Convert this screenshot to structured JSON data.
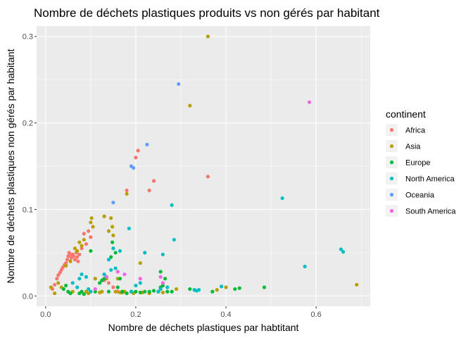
{
  "chart_data": {
    "type": "scatter",
    "title": "Nombre de déchets plastiques produits vs non gérés par habitant",
    "xlabel": "Nombre de déchets plastiques par habtitant",
    "ylabel": "Nombre de déchets plastiques non gérés par habitant",
    "xlim": [
      -0.02,
      0.72
    ],
    "ylim": [
      -0.012,
      0.312
    ],
    "x_ticks": [
      0.0,
      0.2,
      0.4,
      0.6
    ],
    "x_tick_labels": [
      "0.0",
      "0.2",
      "0.4",
      "0.6"
    ],
    "y_ticks": [
      0.0,
      0.1,
      0.2,
      0.3
    ],
    "y_tick_labels": [
      "0.0",
      "0.1",
      "0.2",
      "0.3"
    ],
    "grid": true,
    "background": "#EBEBEB",
    "legend": {
      "title": "continent",
      "placement": "right"
    },
    "series": [
      {
        "name": "Africa",
        "color": "#F8766D",
        "points": [
          [
            0.015,
            0.008
          ],
          [
            0.02,
            0.013
          ],
          [
            0.025,
            0.02
          ],
          [
            0.028,
            0.024
          ],
          [
            0.032,
            0.027
          ],
          [
            0.035,
            0.03
          ],
          [
            0.038,
            0.033
          ],
          [
            0.042,
            0.036
          ],
          [
            0.045,
            0.038
          ],
          [
            0.048,
            0.042
          ],
          [
            0.05,
            0.046
          ],
          [
            0.052,
            0.05
          ],
          [
            0.055,
            0.048
          ],
          [
            0.057,
            0.044
          ],
          [
            0.06,
            0.048
          ],
          [
            0.062,
            0.046
          ],
          [
            0.065,
            0.042
          ],
          [
            0.068,
            0.05
          ],
          [
            0.07,
            0.045
          ],
          [
            0.072,
            0.04
          ],
          [
            0.075,
            0.048
          ],
          [
            0.08,
            0.055
          ],
          [
            0.085,
            0.072
          ],
          [
            0.09,
            0.06
          ],
          [
            0.095,
            0.075
          ],
          [
            0.1,
            0.068
          ],
          [
            0.11,
            0.02
          ],
          [
            0.13,
            0.018
          ],
          [
            0.14,
            0.015
          ],
          [
            0.15,
            0.01
          ],
          [
            0.16,
            0.005
          ],
          [
            0.18,
            0.122
          ],
          [
            0.19,
            0.005
          ],
          [
            0.2,
            0.16
          ],
          [
            0.205,
            0.168
          ],
          [
            0.23,
            0.122
          ],
          [
            0.24,
            0.133
          ],
          [
            0.36,
            0.138
          ]
        ]
      },
      {
        "name": "Asia",
        "color": "#B79F00",
        "points": [
          [
            0.012,
            0.01
          ],
          [
            0.02,
            0.003
          ],
          [
            0.028,
            0.015
          ],
          [
            0.035,
            0.01
          ],
          [
            0.045,
            0.035
          ],
          [
            0.055,
            0.04
          ],
          [
            0.06,
            0.005
          ],
          [
            0.065,
            0.055
          ],
          [
            0.07,
            0.052
          ],
          [
            0.075,
            0.062
          ],
          [
            0.08,
            0.058
          ],
          [
            0.085,
            0.065
          ],
          [
            0.09,
            0.005
          ],
          [
            0.095,
            0.003
          ],
          [
            0.1,
            0.085
          ],
          [
            0.102,
            0.09
          ],
          [
            0.105,
            0.08
          ],
          [
            0.11,
            0.02
          ],
          [
            0.12,
            0.004
          ],
          [
            0.125,
            0.005
          ],
          [
            0.13,
            0.092
          ],
          [
            0.135,
            0.02
          ],
          [
            0.14,
            0.075
          ],
          [
            0.145,
            0.09
          ],
          [
            0.148,
            0.08
          ],
          [
            0.15,
            0.07
          ],
          [
            0.155,
            0.005
          ],
          [
            0.16,
            0.02
          ],
          [
            0.165,
            0.004
          ],
          [
            0.17,
            0.004
          ],
          [
            0.175,
            0.005
          ],
          [
            0.18,
            0.118
          ],
          [
            0.19,
            0.005
          ],
          [
            0.195,
            0.003
          ],
          [
            0.21,
            0.038
          ],
          [
            0.215,
            0.004
          ],
          [
            0.23,
            0.003
          ],
          [
            0.25,
            0.005
          ],
          [
            0.26,
            0.004
          ],
          [
            0.29,
            0.008
          ],
          [
            0.32,
            0.22
          ],
          [
            0.36,
            0.3
          ],
          [
            0.38,
            0.007
          ],
          [
            0.4,
            0.01
          ],
          [
            0.69,
            0.013
          ]
        ]
      },
      {
        "name": "Europe",
        "color": "#00BA38",
        "points": [
          [
            0.04,
            0.008
          ],
          [
            0.045,
            0.012
          ],
          [
            0.05,
            0.005
          ],
          [
            0.055,
            0.003
          ],
          [
            0.075,
            0.003
          ],
          [
            0.08,
            0.005
          ],
          [
            0.085,
            0.002
          ],
          [
            0.1,
            0.052
          ],
          [
            0.11,
            0.005
          ],
          [
            0.12,
            0.015
          ],
          [
            0.125,
            0.018
          ],
          [
            0.13,
            0.02
          ],
          [
            0.135,
            0.022
          ],
          [
            0.14,
            0.005
          ],
          [
            0.145,
            0.045
          ],
          [
            0.148,
            0.062
          ],
          [
            0.15,
            0.055
          ],
          [
            0.155,
            0.05
          ],
          [
            0.16,
            0.01
          ],
          [
            0.165,
            0.02
          ],
          [
            0.17,
            0.005
          ],
          [
            0.18,
            0.003
          ],
          [
            0.19,
            0.005
          ],
          [
            0.2,
            0.005
          ],
          [
            0.21,
            0.004
          ],
          [
            0.22,
            0.005
          ],
          [
            0.23,
            0.005
          ],
          [
            0.24,
            0.006
          ],
          [
            0.25,
            0.005
          ],
          [
            0.255,
            0.01
          ],
          [
            0.26,
            0.012
          ],
          [
            0.265,
            0.02
          ],
          [
            0.27,
            0.005
          ],
          [
            0.28,
            0.005
          ],
          [
            0.32,
            0.008
          ],
          [
            0.33,
            0.007
          ],
          [
            0.37,
            0.005
          ],
          [
            0.42,
            0.008
          ],
          [
            0.43,
            0.009
          ],
          [
            0.485,
            0.01
          ],
          [
            0.255,
            0.028
          ]
        ]
      },
      {
        "name": "North America",
        "color": "#00BFC4",
        "points": [
          [
            0.06,
            0.015
          ],
          [
            0.07,
            0.01
          ],
          [
            0.075,
            0.02
          ],
          [
            0.08,
            0.025
          ],
          [
            0.09,
            0.022
          ],
          [
            0.095,
            0.008
          ],
          [
            0.1,
            0.005
          ],
          [
            0.13,
            0.025
          ],
          [
            0.14,
            0.042
          ],
          [
            0.145,
            0.03
          ],
          [
            0.15,
            0.055
          ],
          [
            0.155,
            0.032
          ],
          [
            0.165,
            0.052
          ],
          [
            0.185,
            0.078
          ],
          [
            0.19,
            0.005
          ],
          [
            0.2,
            0.012
          ],
          [
            0.21,
            0.015
          ],
          [
            0.22,
            0.05
          ],
          [
            0.25,
            0.005
          ],
          [
            0.255,
            0.008
          ],
          [
            0.26,
            0.048
          ],
          [
            0.27,
            0.01
          ],
          [
            0.28,
            0.105
          ],
          [
            0.285,
            0.065
          ],
          [
            0.33,
            0.007
          ],
          [
            0.335,
            0.006
          ],
          [
            0.34,
            0.007
          ],
          [
            0.39,
            0.011
          ],
          [
            0.525,
            0.113
          ],
          [
            0.575,
            0.034
          ],
          [
            0.655,
            0.054
          ],
          [
            0.66,
            0.051
          ]
        ]
      },
      {
        "name": "Oceania",
        "color": "#619CFF",
        "points": [
          [
            0.15,
            0.108
          ],
          [
            0.19,
            0.15
          ],
          [
            0.195,
            0.148
          ],
          [
            0.225,
            0.175
          ],
          [
            0.295,
            0.245
          ]
        ]
      },
      {
        "name": "South America",
        "color": "#F564E3",
        "points": [
          [
            0.11,
            0.008
          ],
          [
            0.135,
            0.022
          ],
          [
            0.16,
            0.028
          ],
          [
            0.175,
            0.025
          ],
          [
            0.21,
            0.02
          ],
          [
            0.255,
            0.022
          ],
          [
            0.26,
            0.015
          ],
          [
            0.585,
            0.224
          ]
        ]
      }
    ]
  }
}
